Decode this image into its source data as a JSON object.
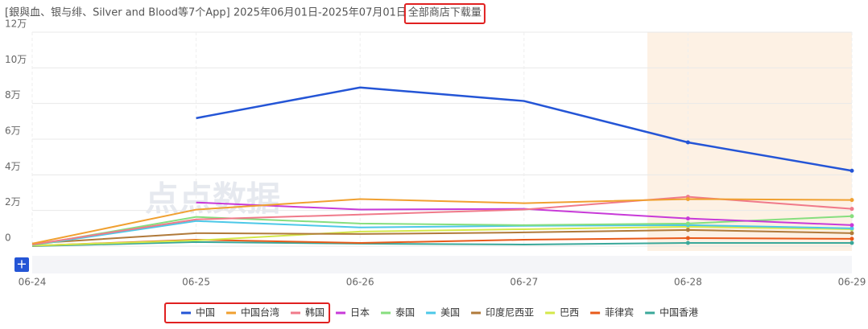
{
  "chart_data": {
    "type": "line",
    "title": "[銀與血、银与绯、Silver and Blood等7个App] 2025年06月01日-2025年07月01日",
    "title_highlight": "全部商店下载量",
    "watermark": "点点数据",
    "categories": [
      "06-24",
      "06-25",
      "06-26",
      "06-27",
      "06-28",
      "06-29"
    ],
    "ylim": [
      0,
      120000
    ],
    "yticks": [
      0,
      {
        "value": 20000,
        "label": "2万"
      },
      {
        "value": 40000,
        "label": "4万"
      },
      {
        "value": 60000,
        "label": "6万"
      },
      {
        "value": 80000,
        "label": "8万"
      },
      {
        "value": 100000,
        "label": "10万"
      },
      {
        "value": 120000,
        "label": "12万"
      }
    ],
    "grid": true,
    "series": [
      {
        "name": "中国",
        "color": "#2455d6",
        "values": [
          null,
          71800,
          89000,
          81400,
          58200,
          42300
        ]
      },
      {
        "name": "中国台湾",
        "color": "#f0a030",
        "values": [
          1400,
          20500,
          26400,
          24100,
          26400,
          25900
        ]
      },
      {
        "name": "韩国",
        "color": "#f07a8a",
        "values": [
          900,
          15000,
          17700,
          20500,
          27700,
          20900
        ]
      },
      {
        "name": "日本",
        "color": "#c83ad8",
        "values": [
          null,
          24500,
          20500,
          20900,
          15500,
          11800
        ]
      },
      {
        "name": "泰国",
        "color": "#86de7e",
        "values": [
          500,
          16400,
          12700,
          11800,
          12700,
          16800
        ]
      },
      {
        "name": "美国",
        "color": "#4cc8e8",
        "values": [
          500,
          14100,
          10500,
          11400,
          11800,
          10000
        ]
      },
      {
        "name": "印度尼西亚",
        "color": "#b07a3a",
        "values": [
          1500,
          7300,
          6800,
          7700,
          9100,
          7300
        ]
      },
      {
        "name": "巴西",
        "color": "#d4e84a",
        "values": [
          300,
          3200,
          8200,
          9500,
          10900,
          9500
        ]
      },
      {
        "name": "菲律宾",
        "color": "#e85a1a",
        "values": [
          200,
          3600,
          1800,
          3600,
          4500,
          4100
        ]
      },
      {
        "name": "中国香港",
        "color": "#3aa89a",
        "values": [
          0,
          2300,
          1400,
          900,
          1800,
          1800
        ]
      }
    ]
  }
}
